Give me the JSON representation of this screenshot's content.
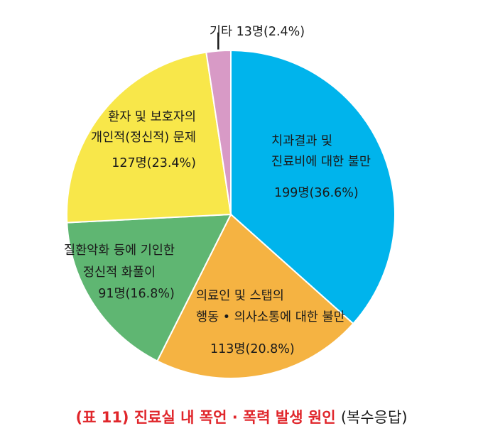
{
  "chart_data": {
    "type": "pie",
    "title": "(표 11) 진료실 내 폭언 · 폭력 발생 원인",
    "subtitle": "(복수응답)",
    "slices": [
      {
        "lines": [
          "치과결과 및",
          "진료비에 대한 불만"
        ],
        "value_label": "199명(36.6%)",
        "count": 199,
        "percent": 36.6,
        "color": "#00b4ec"
      },
      {
        "lines": [
          "의료인 및 스탭의",
          "행동 • 의사소통에 대한 불만"
        ],
        "value_label": "113명(20.8%)",
        "count": 113,
        "percent": 20.8,
        "color": "#f5b342"
      },
      {
        "lines": [
          "질환악화 등에 기인한",
          "정신적 화풀이"
        ],
        "value_label": "91명(16.8%)",
        "count": 91,
        "percent": 16.8,
        "color": "#5fb672"
      },
      {
        "lines": [
          "환자 및 보호자의",
          "개인적(정신적) 문제"
        ],
        "value_label": "127명(23.4%)",
        "count": 127,
        "percent": 23.4,
        "color": "#f8e74a"
      },
      {
        "lines": [
          "기타 13명(2.4%)"
        ],
        "value_label": "",
        "count": 13,
        "percent": 2.4,
        "color": "#d89ac6"
      }
    ]
  }
}
